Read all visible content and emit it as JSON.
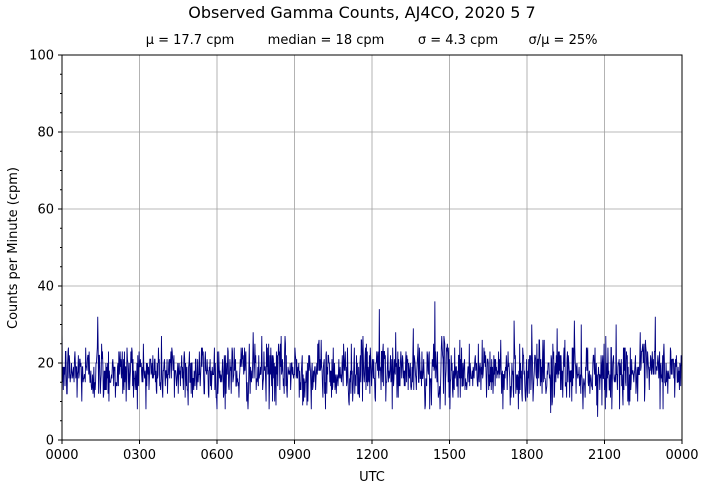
{
  "chart_data": {
    "type": "line",
    "title": "Observed Gamma Counts, AJ4CO, 2020 5 7",
    "subtitle": {
      "mean": "μ = 17.7 cpm",
      "median": "median = 18 cpm",
      "sigma": "σ = 4.3 cpm",
      "ratio": "σ/μ = 25%"
    },
    "xlabel": "UTC",
    "ylabel": "Counts per Minute (cpm)",
    "x_ticks": [
      "0000",
      "0300",
      "0600",
      "0900",
      "1200",
      "1500",
      "1800",
      "2100",
      "0000"
    ],
    "y_ticks": [
      "0",
      "20",
      "40",
      "60",
      "80",
      "100"
    ],
    "xlim": [
      0,
      1440
    ],
    "ylim": [
      0,
      100
    ],
    "grid": true,
    "series": [
      {
        "color": "#000080",
        "x_unit": "minutes after 0000 UTC",
        "sample_interval_minutes": 1,
        "mean": 17.7,
        "sigma": 4.3,
        "min": 6,
        "max": 36,
        "notable_values": [
          {
            "x": 866,
            "y": 36
          },
          {
            "x": 737,
            "y": 34
          },
          {
            "x": 83,
            "y": 32
          },
          {
            "x": 1378,
            "y": 32
          },
          {
            "x": 1050,
            "y": 31
          },
          {
            "x": 1190,
            "y": 31
          },
          {
            "x": 1150,
            "y": 29
          },
          {
            "x": 1060,
            "y": 8
          },
          {
            "x": 1135,
            "y": 7
          },
          {
            "x": 1244,
            "y": 6
          }
        ]
      }
    ]
  }
}
